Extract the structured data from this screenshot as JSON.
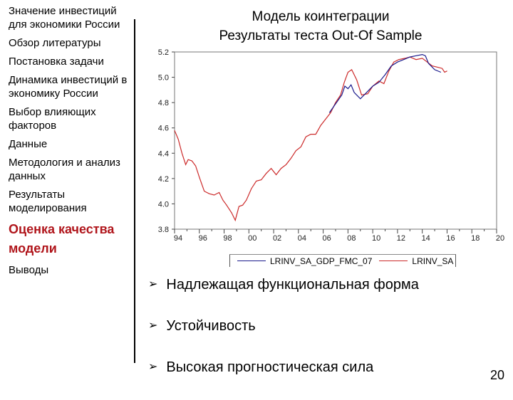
{
  "sidebar": {
    "items": [
      {
        "label": "Значение инвестиций для экономики России",
        "active": false
      },
      {
        "label": "Обзор литературы",
        "active": false
      },
      {
        "label": "Постановка задачи",
        "active": false
      },
      {
        "label": "Динамика инвестиций в экономику России",
        "active": false
      },
      {
        "label": "Выбор влияющих факторов",
        "active": false
      },
      {
        "label": "Данные",
        "active": false
      },
      {
        "label": "Методология и анализ данных",
        "active": false
      },
      {
        "label": "Результаты моделирования",
        "active": false
      },
      {
        "label": "Оценка качества модели",
        "active": true
      },
      {
        "label": "Выводы",
        "active": false
      }
    ]
  },
  "title": {
    "line1": "Модель коинтеграции",
    "line2": "Результаты теста Out-Of Sample"
  },
  "bullets": [
    {
      "icon": "arrow-bullet-icon",
      "text": "Надлежащая функциональная форма"
    },
    {
      "icon": "arrow-bullet-icon",
      "text": "Устойчивость"
    },
    {
      "icon": "arrow-bullet-icon",
      "text": "Высокая прогностическая сила"
    }
  ],
  "page_number": "20",
  "colors": {
    "active_nav": "#b0151b",
    "series_forecast": "#1a1a8c",
    "series_actual": "#cc2a2a"
  },
  "chart_data": {
    "type": "line",
    "title": "",
    "xlabel": "",
    "ylabel": "",
    "x_ticks": [
      "94",
      "96",
      "98",
      "00",
      "02",
      "04",
      "06",
      "08",
      "10",
      "12",
      "14",
      "16",
      "18",
      "20"
    ],
    "y_ticks": [
      "3.8",
      "4.0",
      "4.2",
      "4.4",
      "4.6",
      "4.8",
      "5.0",
      "5.2"
    ],
    "ylim": [
      3.8,
      5.2
    ],
    "xlim": [
      1994,
      2020
    ],
    "grid": false,
    "legend_position": "bottom",
    "series": [
      {
        "name": "LRINV_SA_GDP_FMC_07",
        "color": "#1a1a8c",
        "x": [
          2006.5,
          2007.0,
          2007.5,
          2007.75,
          2008.0,
          2008.25,
          2008.5,
          2009.0,
          2009.5,
          2010.0,
          2010.5,
          2011.0,
          2011.5,
          2012.0,
          2012.5,
          2013.0,
          2013.5,
          2014.0,
          2014.25,
          2014.5,
          2015.0,
          2015.5
        ],
        "values": [
          4.72,
          4.79,
          4.86,
          4.93,
          4.91,
          4.94,
          4.88,
          4.83,
          4.88,
          4.93,
          4.96,
          5.02,
          5.09,
          5.12,
          5.14,
          5.16,
          5.17,
          5.18,
          5.17,
          5.11,
          5.06,
          5.04
        ]
      },
      {
        "name": "LRINV_SA",
        "color": "#cc2a2a",
        "x": [
          1994.0,
          1994.3,
          1994.6,
          1994.9,
          1995.1,
          1995.4,
          1995.7,
          1996.0,
          1996.4,
          1996.8,
          1997.2,
          1997.6,
          1997.9,
          1998.2,
          1998.6,
          1998.9,
          1999.2,
          1999.5,
          1999.8,
          2000.2,
          2000.6,
          2001.0,
          2001.4,
          2001.8,
          2002.2,
          2002.6,
          2003.0,
          2003.4,
          2003.8,
          2004.2,
          2004.6,
          2005.0,
          2005.4,
          2005.8,
          2006.2,
          2006.6,
          2007.0,
          2007.4,
          2007.7,
          2008.0,
          2008.3,
          2008.7,
          2009.1,
          2009.6,
          2010.0,
          2010.5,
          2010.9,
          2011.3,
          2011.7,
          2012.1,
          2012.6,
          2013.0,
          2013.5,
          2014.0,
          2014.4,
          2014.8,
          2015.2,
          2015.6,
          2015.8,
          2016.0
        ],
        "values": [
          4.58,
          4.51,
          4.4,
          4.31,
          4.35,
          4.34,
          4.3,
          4.21,
          4.1,
          4.08,
          4.07,
          4.09,
          4.03,
          3.99,
          3.93,
          3.87,
          3.98,
          3.99,
          4.03,
          4.12,
          4.18,
          4.19,
          4.24,
          4.28,
          4.23,
          4.28,
          4.31,
          4.36,
          4.42,
          4.45,
          4.53,
          4.55,
          4.55,
          4.62,
          4.67,
          4.72,
          4.8,
          4.86,
          4.96,
          5.04,
          5.06,
          4.98,
          4.86,
          4.87,
          4.93,
          4.97,
          4.95,
          5.05,
          5.12,
          5.14,
          5.15,
          5.16,
          5.14,
          5.15,
          5.12,
          5.09,
          5.08,
          5.07,
          5.04,
          5.05
        ]
      }
    ]
  }
}
